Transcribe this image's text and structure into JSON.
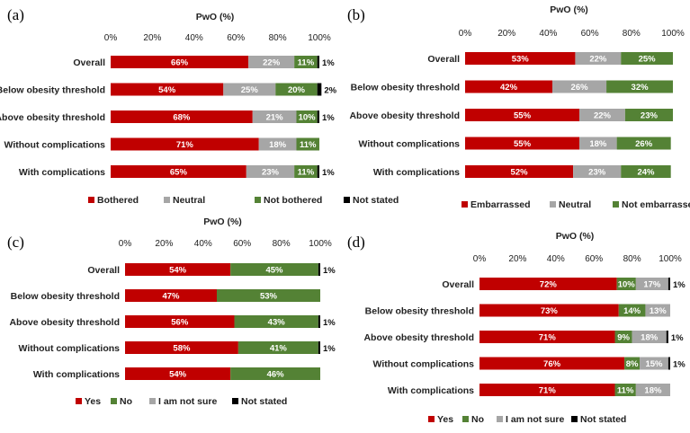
{
  "chart_data": [
    {
      "type": "bar",
      "panel_label": "(a)",
      "xlabel": "PwO (%)",
      "xticks": [
        "0%",
        "20%",
        "40%",
        "60%",
        "80%",
        "100%"
      ],
      "xlim": [
        0,
        100
      ],
      "categories": [
        "Overall",
        "Below obesity threshold",
        "Above obesity threshold",
        "Without complications",
        "With complications"
      ],
      "series": [
        {
          "name": "Bothered",
          "color": "#c00000",
          "values": [
            66,
            54,
            68,
            71,
            65
          ],
          "labels": [
            "66%",
            "54%",
            "68%",
            "71%",
            "65%"
          ]
        },
        {
          "name": "Neutral",
          "color": "#a6a6a6",
          "values": [
            22,
            25,
            21,
            18,
            23
          ],
          "labels": [
            "22%",
            "25%",
            "21%",
            "18%",
            "23%"
          ]
        },
        {
          "name": "Not bothered",
          "color": "#548235",
          "values": [
            11,
            20,
            10,
            11,
            11
          ],
          "labels": [
            "11%",
            "20%",
            "10%",
            "11%",
            "11%"
          ]
        },
        {
          "name": "Not stated",
          "color": "#000000",
          "values": [
            1,
            2,
            1,
            0,
            1
          ],
          "labels": [
            "1%",
            "2%",
            "1%",
            "",
            "1%"
          ]
        }
      ]
    },
    {
      "type": "bar",
      "panel_label": "(b)",
      "xlabel": "PwO (%)",
      "xticks": [
        "0%",
        "20%",
        "40%",
        "60%",
        "80%",
        "100%"
      ],
      "xlim": [
        0,
        100
      ],
      "categories": [
        "Overall",
        "Below obesity threshold",
        "Above obesity threshold",
        "Without complications",
        "With complications"
      ],
      "series": [
        {
          "name": "Embarrassed",
          "color": "#c00000",
          "values": [
            53,
            42,
            55,
            55,
            52
          ],
          "labels": [
            "53%",
            "42%",
            "55%",
            "55%",
            "52%"
          ]
        },
        {
          "name": "Neutral",
          "color": "#a6a6a6",
          "values": [
            22,
            26,
            22,
            18,
            23
          ],
          "labels": [
            "22%",
            "26%",
            "22%",
            "18%",
            "23%"
          ]
        },
        {
          "name": "Not embarrassed",
          "color": "#548235",
          "values": [
            25,
            32,
            23,
            26,
            24
          ],
          "labels": [
            "25%",
            "32%",
            "23%",
            "26%",
            "24%"
          ]
        }
      ]
    },
    {
      "type": "bar",
      "panel_label": "(c)",
      "xlabel": "PwO (%)",
      "xticks": [
        "0%",
        "20%",
        "40%",
        "60%",
        "80%",
        "100%"
      ],
      "xlim": [
        0,
        100
      ],
      "categories": [
        "Overall",
        "Below obesity threshold",
        "Above obesity threshold",
        "Without complications",
        "With complications"
      ],
      "series": [
        {
          "name": "Yes",
          "color": "#c00000",
          "values": [
            54,
            47,
            56,
            58,
            54
          ],
          "labels": [
            "54%",
            "47%",
            "56%",
            "58%",
            "54%"
          ]
        },
        {
          "name": "No",
          "color": "#548235",
          "values": [
            45,
            53,
            43,
            41,
            46
          ],
          "labels": [
            "45%",
            "53%",
            "43%",
            "41%",
            "46%"
          ]
        },
        {
          "name": "I am not sure",
          "color": "#a6a6a6",
          "values": [
            0,
            0,
            0,
            0,
            0
          ],
          "labels": [
            "",
            "",
            "",
            "",
            ""
          ]
        },
        {
          "name": "Not stated",
          "color": "#000000",
          "values": [
            1,
            0,
            1,
            1,
            0
          ],
          "labels": [
            "1%",
            "",
            "1%",
            "1%",
            ""
          ]
        }
      ]
    },
    {
      "type": "bar",
      "panel_label": "(d)",
      "xlabel": "PwO (%)",
      "xticks": [
        "0%",
        "20%",
        "40%",
        "60%",
        "80%",
        "100%"
      ],
      "xlim": [
        0,
        100
      ],
      "categories": [
        "Overall",
        "Below obesity threshold",
        "Above obesity threshold",
        "Without complications",
        "With complications"
      ],
      "series": [
        {
          "name": "Yes",
          "color": "#c00000",
          "values": [
            72,
            73,
            71,
            76,
            71
          ],
          "labels": [
            "72%",
            "73%",
            "71%",
            "76%",
            "71%"
          ]
        },
        {
          "name": "No",
          "color": "#548235",
          "values": [
            10,
            14,
            9,
            8,
            11
          ],
          "labels": [
            "10%",
            "14%",
            "9%",
            "8%",
            "11%"
          ]
        },
        {
          "name": "I am not sure",
          "color": "#a6a6a6",
          "values": [
            17,
            13,
            18,
            15,
            18
          ],
          "labels": [
            "17%",
            "13%",
            "18%",
            "15%",
            "18%"
          ]
        },
        {
          "name": "Not stated",
          "color": "#000000",
          "values": [
            1,
            0,
            1,
            1,
            0
          ],
          "labels": [
            "1%",
            "",
            "1%",
            "1%",
            ""
          ]
        }
      ]
    }
  ]
}
